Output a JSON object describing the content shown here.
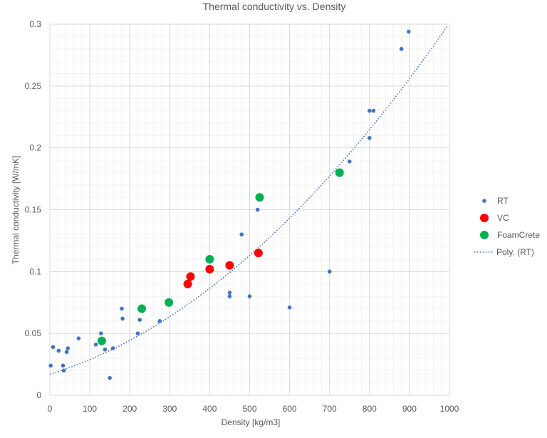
{
  "chart_data": {
    "type": "scatter",
    "title": "Thermal conductivity vs. Density",
    "xlabel": "Density [kg/m3]",
    "ylabel": "Thermal conductivity [W/mK]",
    "xlim": [
      0,
      1000
    ],
    "ylim": [
      0,
      0.3
    ],
    "x_ticks": [
      "0",
      "100",
      "200",
      "300",
      "400",
      "500",
      "600",
      "700",
      "800",
      "900",
      "1000"
    ],
    "y_ticks": [
      "0",
      "0.05",
      "0.1",
      "0.15",
      "0.2",
      "0.25",
      "0.3"
    ],
    "grid": true,
    "legend_position": "right",
    "series": [
      {
        "name": "RT",
        "color": "#4472c4",
        "marker": "small-circle",
        "points": [
          [
            2,
            0.024
          ],
          [
            8,
            0.039
          ],
          [
            22,
            0.036
          ],
          [
            33,
            0.024
          ],
          [
            35,
            0.02
          ],
          [
            42,
            0.035
          ],
          [
            45,
            0.038
          ],
          [
            72,
            0.046
          ],
          [
            115,
            0.041
          ],
          [
            128,
            0.05
          ],
          [
            138,
            0.037
          ],
          [
            150,
            0.014
          ],
          [
            158,
            0.038
          ],
          [
            180,
            0.07
          ],
          [
            182,
            0.062
          ],
          [
            220,
            0.05
          ],
          [
            225,
            0.061
          ],
          [
            275,
            0.06
          ],
          [
            450,
            0.08
          ],
          [
            450,
            0.083
          ],
          [
            480,
            0.13
          ],
          [
            500,
            0.08
          ],
          [
            520,
            0.15
          ],
          [
            600,
            0.071
          ],
          [
            700,
            0.1
          ],
          [
            750,
            0.189
          ],
          [
            800,
            0.208
          ],
          [
            800,
            0.23
          ],
          [
            810,
            0.23
          ],
          [
            880,
            0.28
          ],
          [
            898,
            0.294
          ]
        ]
      },
      {
        "name": "VC",
        "color": "#ff0000",
        "marker": "large-circle",
        "points": [
          [
            345,
            0.09
          ],
          [
            352,
            0.096
          ],
          [
            400,
            0.102
          ],
          [
            450,
            0.105
          ],
          [
            522,
            0.115
          ]
        ]
      },
      {
        "name": "FoamCrete",
        "color": "#00b050",
        "marker": "large-circle",
        "points": [
          [
            130,
            0.044
          ],
          [
            230,
            0.07
          ],
          [
            298,
            0.075
          ],
          [
            400,
            0.11
          ],
          [
            525,
            0.16
          ],
          [
            725,
            0.18
          ]
        ]
      }
    ],
    "trendline": {
      "name": "Poly. (RT)",
      "color": "#4472c4",
      "style": "dotted",
      "type": "polynomial",
      "coefficients": [
        0.017,
        0.0001,
        1.84e-07
      ]
    }
  }
}
